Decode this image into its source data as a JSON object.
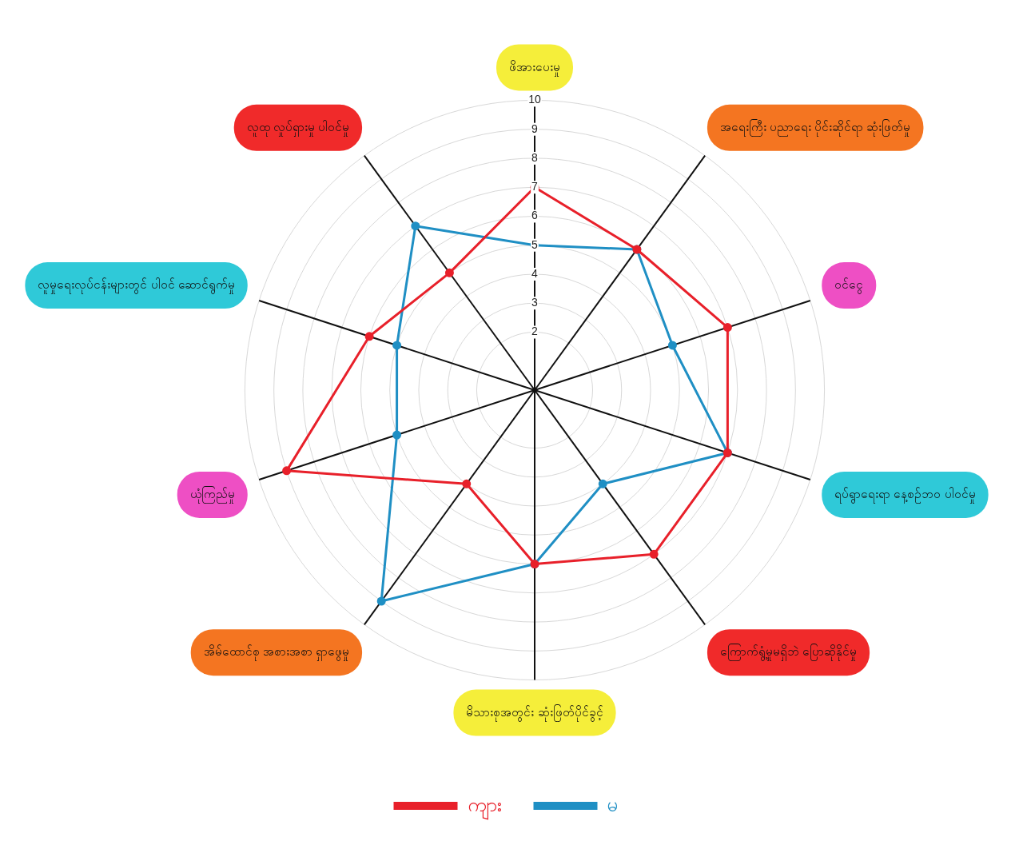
{
  "chart_data": {
    "type": "radar",
    "categories": [
      "ဖိအားပေးမှု",
      "အရေးကြီး ပညာရေး ပိုင်းဆိုင်ရာ ဆုံးဖြတ်မှု",
      "ဝင်ငွေ",
      "ရပ်ရွာရေးရာ နေ့စဉ်ဘဝ ပါဝင်မှု",
      "ကြောက်ရွံ့မှုမရှိဘဲ ပြောဆိုနိုင်မှု",
      "မိသားစုအတွင်း ဆုံးဖြတ်ပိုင်ခွင့်",
      "အိမ်ထောင်စု အစားအစာ ရှာဖွေမှု",
      "ယုံကြည်မှု",
      "လူမှုရေးလုပ်ငန်းများတွင် ပါဝင် ဆောင်ရွက်မှု",
      "လူထု လှုပ်ရှားမှု ပါဝင်မှု"
    ],
    "series": [
      {
        "name": "ကျား",
        "color": "#e8202a",
        "values": [
          7,
          6,
          7,
          7,
          7,
          6,
          4,
          9,
          6,
          5
        ]
      },
      {
        "name": "မ",
        "color": "#1f8fc4",
        "values": [
          5,
          6,
          5,
          7,
          4,
          6,
          9,
          5,
          5,
          7
        ]
      }
    ],
    "ylim": [
      0,
      10
    ],
    "yticks": [
      2,
      3,
      4,
      5,
      6,
      7,
      8,
      9,
      10
    ],
    "grid": true,
    "legend": "bottom",
    "marker": "circle",
    "line_style": "solid"
  }
}
